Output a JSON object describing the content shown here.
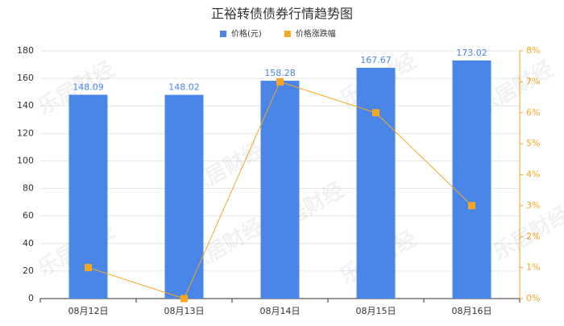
{
  "chart_data": {
    "type": "bar",
    "title": "正裕转债债券行情趋势图",
    "watermark": "乐居财经",
    "categories": [
      "08月12日",
      "08月13日",
      "08月14日",
      "08月15日",
      "08月16日"
    ],
    "series": [
      {
        "name": "价格(元)",
        "type": "bar",
        "color": "#4a86e8",
        "values": [
          148.09,
          148.02,
          158.28,
          167.67,
          173.02
        ]
      },
      {
        "name": "价格涨跌幅",
        "type": "line",
        "axis": "y2",
        "color": "#f5a623",
        "values": [
          1.0,
          0,
          7.0,
          6.0,
          3.0
        ]
      }
    ],
    "ylim": [
      0,
      180
    ],
    "yticks": [
      0,
      20,
      40,
      60,
      80,
      100,
      120,
      140,
      160,
      180
    ],
    "y2lim": [
      0,
      8
    ],
    "y2ticks": [
      {
        "value": 0,
        "label": "0%"
      },
      {
        "value": 1,
        "label": "1%"
      },
      {
        "value": 2,
        "label": "2%"
      },
      {
        "value": 3,
        "label": "3%"
      },
      {
        "value": 4,
        "label": "4%"
      },
      {
        "value": 5,
        "label": "5%"
      },
      {
        "value": 6,
        "label": "6%"
      },
      {
        "value": 7,
        "label": "7%"
      },
      {
        "value": 8,
        "label": "8%"
      }
    ],
    "grid": true
  }
}
